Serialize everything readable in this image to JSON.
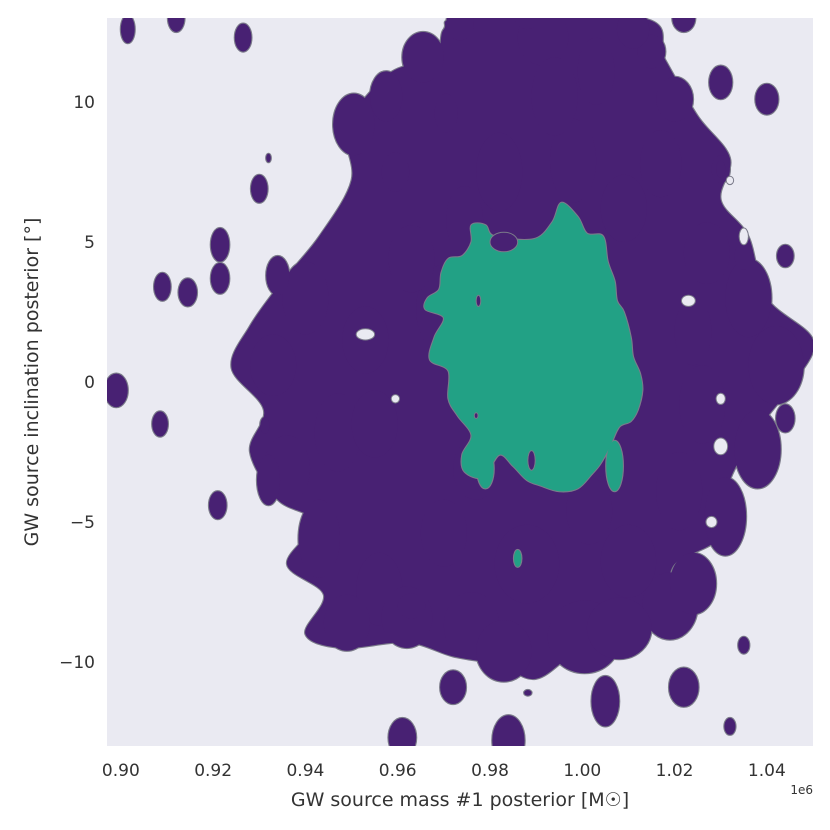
{
  "chart_data": {
    "type": "contour",
    "xlabel": "GW source mass #1 posterior [M☉]",
    "ylabel": "GW source inclination posterior [°]",
    "x_offset_label": "1e6",
    "xlim": [
      0.897,
      1.05
    ],
    "ylim": [
      -13.0,
      13.0
    ],
    "x_tick_values": [
      0.9,
      0.92,
      0.94,
      0.96,
      0.98,
      1.0,
      1.02,
      1.04
    ],
    "x_tick_labels": [
      "0.90",
      "0.92",
      "0.94",
      "0.96",
      "0.98",
      "1.00",
      "1.02",
      "1.04"
    ],
    "y_tick_values": [
      10,
      5,
      0,
      -5,
      -10
    ],
    "y_tick_labels": [
      "10",
      "5",
      "0",
      "−5",
      "−10"
    ],
    "grid": false,
    "background_color": "#eaeaf2",
    "levels": [
      {
        "name": "outer",
        "color": "#482173",
        "edge_color": "#7b7b8a",
        "main_region": [
          [
            0.975,
            13.0
          ],
          [
            1.013,
            13.0
          ],
          [
            1.018,
            11.5
          ],
          [
            1.025,
            9.5
          ],
          [
            1.032,
            8.0
          ],
          [
            1.03,
            6.5
          ],
          [
            1.036,
            5.2
          ],
          [
            1.04,
            3.0
          ],
          [
            1.05,
            1.5
          ],
          [
            1.046,
            0.0
          ],
          [
            1.039,
            -1.5
          ],
          [
            1.032,
            -3.5
          ],
          [
            1.03,
            -5.5
          ],
          [
            1.02,
            -6.5
          ],
          [
            1.018,
            -7.8
          ],
          [
            1.01,
            -8.8
          ],
          [
            0.999,
            -9.6
          ],
          [
            0.99,
            -10.6
          ],
          [
            0.982,
            -10.1
          ],
          [
            0.972,
            -9.8
          ],
          [
            0.962,
            -9.3
          ],
          [
            0.948,
            -9.5
          ],
          [
            0.94,
            -9.0
          ],
          [
            0.944,
            -7.6
          ],
          [
            0.936,
            -6.5
          ],
          [
            0.942,
            -5.0
          ],
          [
            0.934,
            -4.2
          ],
          [
            0.928,
            -2.5
          ],
          [
            0.931,
            -1.0
          ],
          [
            0.924,
            0.5
          ],
          [
            0.928,
            2.0
          ],
          [
            0.935,
            3.6
          ],
          [
            0.943,
            5.2
          ],
          [
            0.95,
            7.2
          ],
          [
            0.949,
            9.1
          ],
          [
            0.958,
            11.0
          ],
          [
            0.968,
            11.6
          ],
          [
            0.97,
            12.6
          ]
        ],
        "blobs": [
          {
            "x": 0.9575,
            "y": 10.2,
            "rx": 0.0035,
            "ry": 0.9
          },
          {
            "x": 0.9705,
            "y": 9.6,
            "rx": 0.0025,
            "ry": 0.7
          },
          {
            "x": 0.9505,
            "y": 9.2,
            "rx": 0.0045,
            "ry": 1.1
          },
          {
            "x": 0.9915,
            "y": 12.3,
            "rx": 0.0055,
            "ry": 1.0
          },
          {
            "x": 0.9655,
            "y": 11.6,
            "rx": 0.0045,
            "ry": 0.9
          },
          {
            "x": 1.02,
            "y": 10.1,
            "rx": 0.004,
            "ry": 0.8
          },
          {
            "x": 1.017,
            "y": 7.8,
            "rx": 0.0045,
            "ry": 1.2
          },
          {
            "x": 1.009,
            "y": 6.2,
            "rx": 0.005,
            "ry": 1.2
          },
          {
            "x": 1.036,
            "y": 3.0,
            "rx": 0.005,
            "ry": 1.4
          },
          {
            "x": 1.042,
            "y": 0.6,
            "rx": 0.006,
            "ry": 1.4
          },
          {
            "x": 1.038,
            "y": -2.4,
            "rx": 0.005,
            "ry": 1.4
          },
          {
            "x": 1.031,
            "y": -4.8,
            "rx": 0.0045,
            "ry": 1.4
          },
          {
            "x": 1.019,
            "y": -8.0,
            "rx": 0.006,
            "ry": 1.2
          },
          {
            "x": 0.956,
            "y": -7.4,
            "rx": 0.005,
            "ry": 1.3
          },
          {
            "x": 0.943,
            "y": -5.6,
            "rx": 0.0045,
            "ry": 1.4
          },
          {
            "x": 0.94,
            "y": 3.0,
            "rx": 0.005,
            "ry": 1.3
          },
          {
            "x": 0.934,
            "y": 3.8,
            "rx": 0.0025,
            "ry": 0.7
          },
          {
            "x": 0.933,
            "y": 0.6,
            "rx": 0.005,
            "ry": 1.1
          },
          {
            "x": 0.947,
            "y": -1.8,
            "rx": 0.005,
            "ry": 1.4
          },
          {
            "x": 0.97,
            "y": 2.6,
            "rx": 0.006,
            "ry": 1.6
          },
          {
            "x": 0.963,
            "y": 4.4,
            "rx": 0.005,
            "ry": 1.2
          },
          {
            "x": 0.9745,
            "y": 5.8,
            "rx": 0.004,
            "ry": 1.2
          },
          {
            "x": 0.982,
            "y": 7.5,
            "rx": 0.005,
            "ry": 1.4
          },
          {
            "x": 0.998,
            "y": 7.9,
            "rx": 0.005,
            "ry": 1.5
          },
          {
            "x": 0.994,
            "y": 10.2,
            "rx": 0.005,
            "ry": 1.4
          },
          {
            "x": 1.003,
            "y": 11.1,
            "rx": 0.004,
            "ry": 1.2
          },
          {
            "x": 1.0005,
            "y": -9.1,
            "rx": 0.008,
            "ry": 1.3
          },
          {
            "x": 0.976,
            "y": -8.7,
            "rx": 0.006,
            "ry": 1.2
          },
          {
            "x": 0.962,
            "y": -8.4,
            "rx": 0.0055,
            "ry": 1.1
          },
          {
            "x": 0.988,
            "y": -6.5,
            "rx": 0.007,
            "ry": 1.4
          },
          {
            "x": 1.01,
            "y": -6.4,
            "rx": 0.006,
            "ry": 1.3
          },
          {
            "x": 1.021,
            "y": -3.9,
            "rx": 0.005,
            "ry": 1.4
          },
          {
            "x": 1.026,
            "y": -0.8,
            "rx": 0.005,
            "ry": 1.4
          },
          {
            "x": 1.024,
            "y": 1.8,
            "rx": 0.004,
            "ry": 1.2
          },
          {
            "x": 1.027,
            "y": 4.6,
            "rx": 0.005,
            "ry": 1.1
          },
          {
            "x": 0.936,
            "y": -3.1,
            "rx": 0.005,
            "ry": 1.2
          },
          {
            "x": 0.983,
            "y": -9.6,
            "rx": 0.006,
            "ry": 1.1
          },
          {
            "x": 1.008,
            "y": -8.8,
            "rx": 0.007,
            "ry": 1.1
          },
          {
            "x": 1.024,
            "y": -7.2,
            "rx": 0.005,
            "ry": 1.1
          },
          {
            "x": 0.949,
            "y": -8.6,
            "rx": 0.005,
            "ry": 1.0
          },
          {
            "x": 0.988,
            "y": 13.2,
            "rx": 0.003,
            "ry": 0.6
          },
          {
            "x": 1.015,
            "y": 11.8,
            "rx": 0.003,
            "ry": 0.6
          },
          {
            "x": 0.9595,
            "y": 7.5,
            "rx": 0.003,
            "ry": 0.7
          },
          {
            "x": 0.977,
            "y": -3.1,
            "rx": 0.005,
            "ry": 1.1
          },
          {
            "x": 0.97,
            "y": -5.4,
            "rx": 0.005,
            "ry": 1.2
          },
          {
            "x": 1.0015,
            "y": -4.6,
            "rx": 0.005,
            "ry": 1.2
          },
          {
            "x": 1.03,
            "y": 7.6,
            "rx": 0.002,
            "ry": 0.5
          },
          {
            "x": 1.035,
            "y": 4.5,
            "rx": 0.002,
            "ry": 0.5
          },
          {
            "x": 1.003,
            "y": -2.2,
            "rx": 0.005,
            "ry": 1.2
          },
          {
            "x": 0.955,
            "y": -1.5,
            "rx": 0.005,
            "ry": 1.2
          },
          {
            "x": 0.953,
            "y": 1.5,
            "rx": 0.005,
            "ry": 1.2
          }
        ],
        "islands": [
          {
            "x": 0.9015,
            "y": 12.6,
            "rx": 0.0015,
            "ry": 0.5
          },
          {
            "x": 0.912,
            "y": 13.0,
            "rx": 0.0018,
            "ry": 0.5
          },
          {
            "x": 0.9265,
            "y": 12.3,
            "rx": 0.0018,
            "ry": 0.5
          },
          {
            "x": 0.909,
            "y": 3.4,
            "rx": 0.0018,
            "ry": 0.5
          },
          {
            "x": 0.9145,
            "y": 3.2,
            "rx": 0.002,
            "ry": 0.5
          },
          {
            "x": 0.9215,
            "y": 4.9,
            "rx": 0.002,
            "ry": 0.6
          },
          {
            "x": 0.9215,
            "y": 3.7,
            "rx": 0.002,
            "ry": 0.55
          },
          {
            "x": 0.93,
            "y": 6.9,
            "rx": 0.0018,
            "ry": 0.5
          },
          {
            "x": 0.899,
            "y": -0.3,
            "rx": 0.0025,
            "ry": 0.6
          },
          {
            "x": 0.9085,
            "y": -1.5,
            "rx": 0.0017,
            "ry": 0.45
          },
          {
            "x": 0.921,
            "y": -4.4,
            "rx": 0.0019,
            "ry": 0.5
          },
          {
            "x": 0.9312,
            "y": -1.55,
            "rx": 0.001,
            "ry": 0.3
          },
          {
            "x": 0.932,
            "y": -3.5,
            "rx": 0.0025,
            "ry": 0.9
          },
          {
            "x": 0.932,
            "y": 8.0,
            "rx": 0.0005,
            "ry": 0.15
          },
          {
            "x": 0.963,
            "y": -8.0,
            "rx": 0.003,
            "ry": 0.45
          },
          {
            "x": 0.972,
            "y": -10.9,
            "rx": 0.0028,
            "ry": 0.6
          },
          {
            "x": 0.961,
            "y": -12.7,
            "rx": 0.003,
            "ry": 0.7
          },
          {
            "x": 0.984,
            "y": -12.8,
            "rx": 0.0035,
            "ry": 0.9
          },
          {
            "x": 0.9882,
            "y": -11.1,
            "rx": 0.0008,
            "ry": 0.1
          },
          {
            "x": 1.005,
            "y": -11.4,
            "rx": 0.003,
            "ry": 0.9
          },
          {
            "x": 1.022,
            "y": -10.9,
            "rx": 0.0032,
            "ry": 0.7
          },
          {
            "x": 1.032,
            "y": -12.3,
            "rx": 0.0012,
            "ry": 0.3
          },
          {
            "x": 1.035,
            "y": -9.4,
            "rx": 0.0012,
            "ry": 0.3
          },
          {
            "x": 1.044,
            "y": -1.3,
            "rx": 0.002,
            "ry": 0.5
          },
          {
            "x": 1.044,
            "y": 4.5,
            "rx": 0.0018,
            "ry": 0.4
          },
          {
            "x": 1.04,
            "y": 10.1,
            "rx": 0.0025,
            "ry": 0.55
          },
          {
            "x": 1.03,
            "y": 10.7,
            "rx": 0.0025,
            "ry": 0.6
          },
          {
            "x": 1.011,
            "y": 12.6,
            "rx": 0.0035,
            "ry": 0.7
          },
          {
            "x": 1.022,
            "y": 13.0,
            "rx": 0.0025,
            "ry": 0.5
          },
          {
            "x": 0.9735,
            "y": 12.8,
            "rx": 0.003,
            "ry": 0.6
          },
          {
            "x": 1.03,
            "y": 7.6,
            "rx": 0.001,
            "ry": 0.3
          }
        ],
        "holes": [
          {
            "x": 0.953,
            "y": 1.7,
            "rx": 0.002,
            "ry": 0.2
          },
          {
            "x": 0.9595,
            "y": -0.6,
            "rx": 0.0009,
            "ry": 0.15
          },
          {
            "x": 1.03,
            "y": -0.6,
            "rx": 0.001,
            "ry": 0.2
          },
          {
            "x": 1.028,
            "y": -5.0,
            "rx": 0.0012,
            "ry": 0.2
          },
          {
            "x": 1.03,
            "y": -2.3,
            "rx": 0.0015,
            "ry": 0.3
          },
          {
            "x": 1.023,
            "y": 2.9,
            "rx": 0.0015,
            "ry": 0.2
          },
          {
            "x": 1.032,
            "y": 7.2,
            "rx": 0.0008,
            "ry": 0.15
          },
          {
            "x": 1.035,
            "y": 5.2,
            "rx": 0.001,
            "ry": 0.3
          }
        ]
      },
      {
        "name": "inner",
        "color": "#22a185",
        "edge_color": "#7b7b8a",
        "main_region": [
          [
            0.981,
            5.2
          ],
          [
            0.9895,
            5.1
          ],
          [
            0.9935,
            5.7
          ],
          [
            0.9955,
            6.4
          ],
          [
            0.999,
            5.9
          ],
          [
            1.001,
            5.3
          ],
          [
            1.0045,
            5.2
          ],
          [
            1.0055,
            4.3
          ],
          [
            1.007,
            3.6
          ],
          [
            1.0075,
            2.9
          ],
          [
            1.009,
            2.5
          ],
          [
            1.0105,
            1.6
          ],
          [
            1.011,
            0.9
          ],
          [
            1.0125,
            0.3
          ],
          [
            1.013,
            -0.3
          ],
          [
            1.012,
            -1.0
          ],
          [
            1.0105,
            -1.4
          ],
          [
            1.008,
            -1.6
          ],
          [
            1.006,
            -2.3
          ],
          [
            1.004,
            -2.9
          ],
          [
            1.002,
            -3.3
          ],
          [
            0.999,
            -3.8
          ],
          [
            0.995,
            -3.9
          ],
          [
            0.991,
            -3.7
          ],
          [
            0.988,
            -3.5
          ],
          [
            0.985,
            -3.0
          ],
          [
            0.982,
            -2.6
          ],
          [
            0.9785,
            -3.4
          ],
          [
            0.9745,
            -3.2
          ],
          [
            0.974,
            -2.6
          ],
          [
            0.976,
            -1.9
          ],
          [
            0.973,
            -1.2
          ],
          [
            0.971,
            -0.6
          ],
          [
            0.971,
            0.4
          ],
          [
            0.967,
            0.8
          ],
          [
            0.968,
            1.6
          ],
          [
            0.97,
            2.3
          ],
          [
            0.966,
            2.6
          ],
          [
            0.9665,
            3.0
          ],
          [
            0.969,
            3.3
          ],
          [
            0.9695,
            3.9
          ],
          [
            0.971,
            4.4
          ],
          [
            0.974,
            4.5
          ],
          [
            0.976,
            5.0
          ],
          [
            0.976,
            5.6
          ],
          [
            0.979,
            5.6
          ]
        ],
        "blobs": [
          {
            "x": 1.007,
            "y": -3.0,
            "rx": 0.0018,
            "ry": 0.9
          },
          {
            "x": 0.979,
            "y": -3.1,
            "rx": 0.0018,
            "ry": 0.7
          }
        ],
        "islands": [
          {
            "x": 0.986,
            "y": -6.3,
            "rx": 0.0008,
            "ry": 0.3
          }
        ],
        "holes": [
          {
            "x": 0.983,
            "y": 5.0,
            "rx": 0.003,
            "ry": 0.35
          },
          {
            "x": 0.9775,
            "y": 2.9,
            "rx": 0.0005,
            "ry": 0.2
          },
          {
            "x": 0.989,
            "y": -2.8,
            "rx": 0.0008,
            "ry": 0.35
          },
          {
            "x": 0.977,
            "y": -1.2,
            "rx": 0.0004,
            "ry": 0.1
          }
        ]
      }
    ]
  }
}
